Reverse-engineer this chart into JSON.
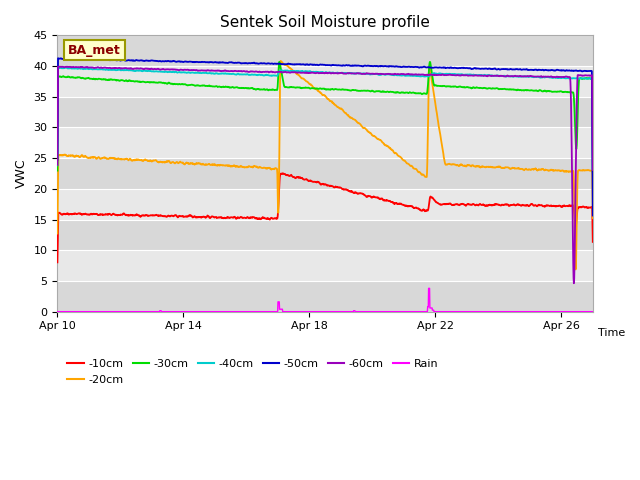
{
  "title": "Sentek Soil Moisture profile",
  "xlabel": "Time",
  "ylabel": "VWC",
  "legend_label": "BA_met",
  "ylim": [
    0,
    45
  ],
  "xlim": [
    0,
    17
  ],
  "series_colors": {
    "-10cm": "#ff0000",
    "-20cm": "#ffa500",
    "-30cm": "#00dd00",
    "-40cm": "#00cccc",
    "-50cm": "#0000cc",
    "-60cm": "#9900bb",
    "Rain": "#ff00ff"
  },
  "xtick_labels": [
    "Apr 10",
    "Apr 14",
    "Apr 18",
    "Apr 22",
    "Apr 26"
  ],
  "xtick_positions": [
    0,
    4,
    8,
    12,
    16
  ],
  "ytick_positions": [
    0,
    5,
    10,
    15,
    20,
    25,
    30,
    35,
    40,
    45
  ],
  "band_light": "#e8e8e8",
  "band_dark": "#d8d8d8",
  "grid_color": "#ffffff"
}
